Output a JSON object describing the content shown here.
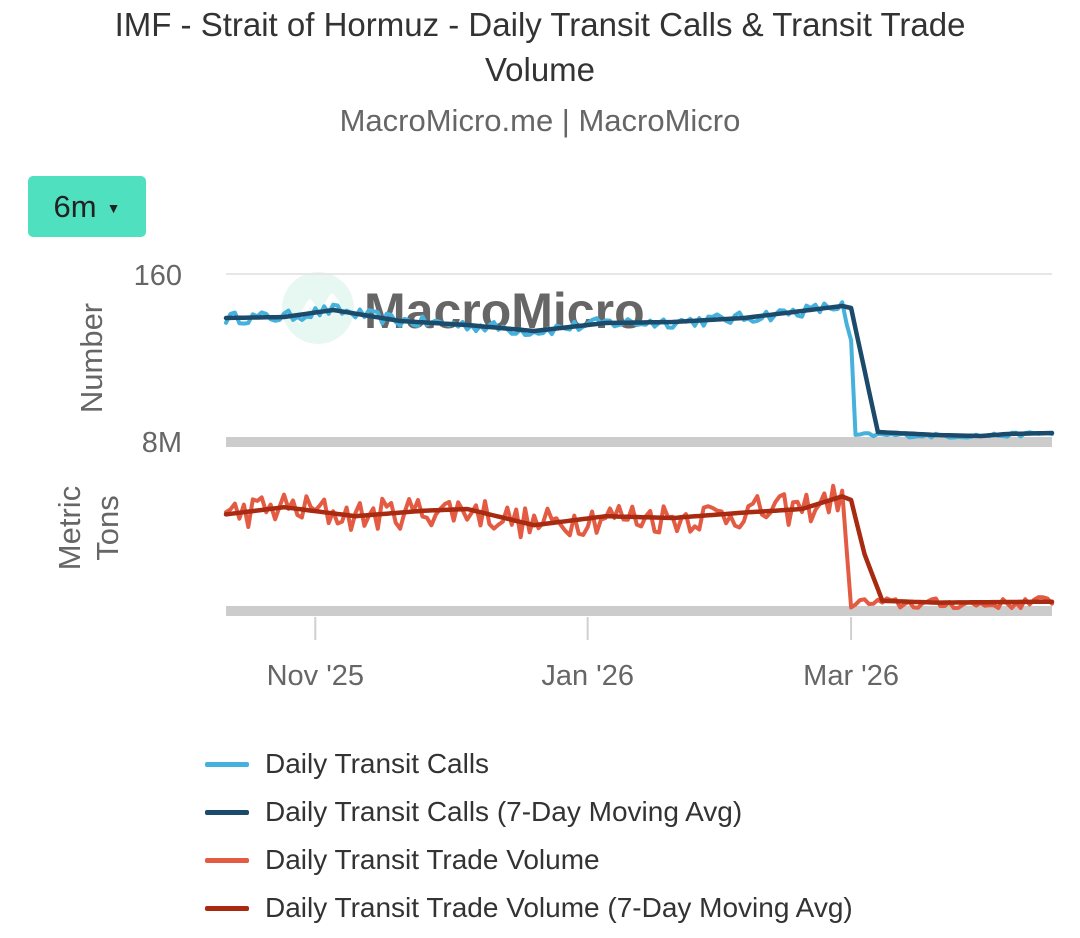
{
  "title": "IMF - Strait of Hormuz - Daily Transit Calls & Transit Trade Volume",
  "subtitle": "MacroMicro.me | MacroMicro",
  "range_selector": {
    "label": "6m",
    "caret_icon": "caret-down-icon"
  },
  "watermark": "MacroMicro",
  "colors": {
    "calls": "#45b1dc",
    "calls_ma": "#1b4a6b",
    "trade": "#e35b43",
    "trade_ma": "#a82a10",
    "button": "#4fe0bf",
    "baseline": "#cccccc"
  },
  "chart_data": {
    "type": "line",
    "x": {
      "tick_labels": [
        "Nov '25",
        "Jan '26",
        "Mar '26"
      ],
      "tick_dates": [
        "2025-11-01",
        "2026-01-01",
        "2026-03-01"
      ],
      "range": [
        "2025-10-12",
        "2026-04-15"
      ]
    },
    "panels": [
      {
        "id": "calls",
        "ylabel": "Number",
        "y_tick_labels": [
          "160"
        ],
        "series": [
          "Daily Transit Calls",
          "Daily Transit Calls (7-Day Moving Avg)"
        ]
      },
      {
        "id": "trade",
        "ylabel": "Metric Tons",
        "y_tick_labels": [
          "8M"
        ],
        "series": [
          "Daily Transit Trade Volume",
          "Daily Transit Trade Volume (7-Day Moving Avg)"
        ]
      }
    ],
    "series": [
      {
        "name": "Daily Transit Calls",
        "panel": "calls",
        "keyframes": [
          [
            "2025-10-12",
            122
          ],
          [
            "2025-10-25",
            123
          ],
          [
            "2025-11-05",
            130
          ],
          [
            "2025-11-20",
            119
          ],
          [
            "2025-12-05",
            115
          ],
          [
            "2025-12-20",
            109
          ],
          [
            "2026-01-05",
            117
          ],
          [
            "2026-01-20",
            118
          ],
          [
            "2026-02-05",
            122
          ],
          [
            "2026-02-18",
            129
          ],
          [
            "2026-02-27",
            134
          ],
          [
            "2026-03-01",
            95
          ],
          [
            "2026-03-02",
            5
          ],
          [
            "2026-03-10",
            5
          ],
          [
            "2026-03-25",
            4
          ],
          [
            "2026-04-05",
            5
          ],
          [
            "2026-04-15",
            7
          ]
        ],
        "noise": 6
      },
      {
        "name": "Daily Transit Calls (7-Day Moving Avg)",
        "panel": "calls",
        "keyframes": [
          [
            "2025-10-12",
            122
          ],
          [
            "2025-10-25",
            123
          ],
          [
            "2025-11-05",
            130
          ],
          [
            "2025-11-20",
            119
          ],
          [
            "2025-12-05",
            115
          ],
          [
            "2025-12-20",
            109
          ],
          [
            "2026-01-05",
            117
          ],
          [
            "2026-01-20",
            118
          ],
          [
            "2026-02-05",
            122
          ],
          [
            "2026-02-18",
            129
          ],
          [
            "2026-02-27",
            134
          ],
          [
            "2026-03-01",
            132
          ],
          [
            "2026-03-04",
            70
          ],
          [
            "2026-03-07",
            8
          ],
          [
            "2026-03-20",
            5
          ],
          [
            "2026-03-30",
            4
          ],
          [
            "2026-04-05",
            6
          ],
          [
            "2026-04-15",
            7
          ]
        ],
        "noise": 0
      },
      {
        "name": "Daily Transit Trade Volume",
        "panel": "trade",
        "keyframes": [
          [
            "2025-10-12",
            5.2
          ],
          [
            "2025-10-25",
            5.6
          ],
          [
            "2025-11-10",
            5.1
          ],
          [
            "2025-11-25",
            5.4
          ],
          [
            "2025-12-05",
            5.5
          ],
          [
            "2025-12-20",
            4.6
          ],
          [
            "2026-01-05",
            5.1
          ],
          [
            "2026-01-20",
            5.0
          ],
          [
            "2026-02-05",
            5.3
          ],
          [
            "2026-02-18",
            5.5
          ],
          [
            "2026-02-27",
            6.2
          ],
          [
            "2026-02-28",
            2.5
          ],
          [
            "2026-03-01",
            0.3
          ],
          [
            "2026-03-10",
            0.25
          ],
          [
            "2026-04-05",
            0.2
          ],
          [
            "2026-04-15",
            0.4
          ]
        ],
        "noise": 0.9
      },
      {
        "name": "Daily Transit Trade Volume (7-Day Moving Avg)",
        "panel": "trade",
        "keyframes": [
          [
            "2025-10-12",
            5.2
          ],
          [
            "2025-10-25",
            5.6
          ],
          [
            "2025-11-10",
            5.1
          ],
          [
            "2025-11-25",
            5.4
          ],
          [
            "2025-12-05",
            5.5
          ],
          [
            "2025-12-20",
            4.6
          ],
          [
            "2026-01-05",
            5.1
          ],
          [
            "2026-01-20",
            5.0
          ],
          [
            "2026-02-05",
            5.3
          ],
          [
            "2026-02-18",
            5.5
          ],
          [
            "2026-02-27",
            6.2
          ],
          [
            "2026-03-01",
            6.0
          ],
          [
            "2026-03-04",
            3.0
          ],
          [
            "2026-03-08",
            0.4
          ],
          [
            "2026-03-20",
            0.3
          ],
          [
            "2026-04-15",
            0.35
          ]
        ],
        "noise": 0
      }
    ],
    "legend": {
      "position": "bottom",
      "entries": [
        "Daily Transit Calls",
        "Daily Transit Calls (7-Day Moving Avg)",
        "Daily Transit Trade Volume",
        "Daily Transit Trade Volume (7-Day Moving Avg)"
      ]
    }
  }
}
